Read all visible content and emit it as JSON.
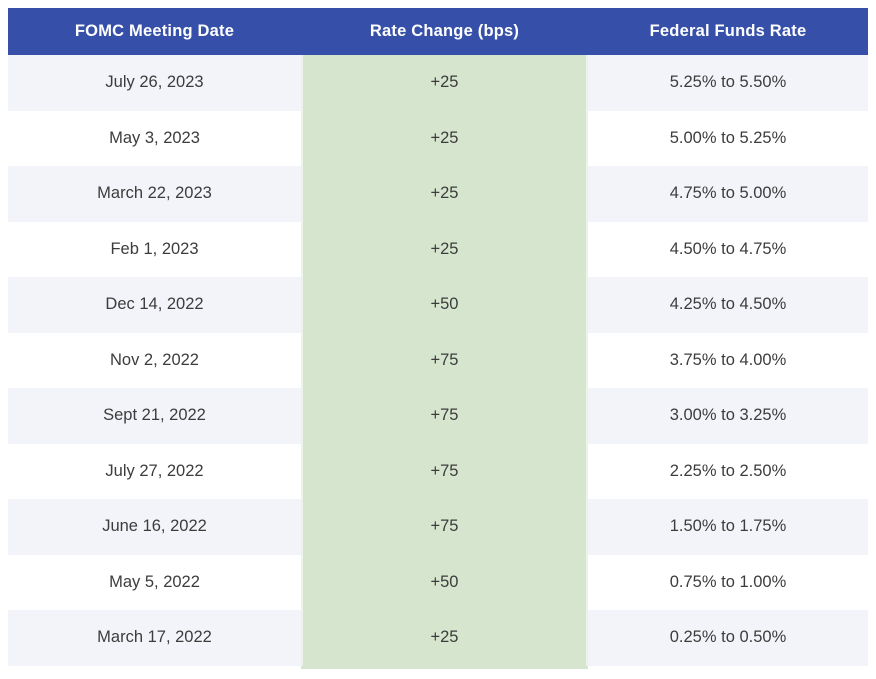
{
  "chart_data": {
    "type": "table",
    "columns": [
      "FOMC Meeting Date",
      "Rate Change (bps)",
      "Federal Funds Rate"
    ],
    "rows": [
      [
        "July 26, 2023",
        "+25",
        "5.25% to 5.50%"
      ],
      [
        "May 3, 2023",
        "+25",
        "5.00% to 5.25%"
      ],
      [
        "March 22, 2023",
        "+25",
        "4.75% to 5.00%"
      ],
      [
        "Feb 1, 2023",
        "+25",
        "4.50% to 4.75%"
      ],
      [
        "Dec 14, 2022",
        "+50",
        "4.25% to 4.50%"
      ],
      [
        "Nov 2, 2022",
        "+75",
        "3.75% to 4.00%"
      ],
      [
        "Sept 21, 2022",
        "+75",
        "3.00% to 3.25%"
      ],
      [
        "July 27, 2022",
        "+75",
        "2.25% to 2.50%"
      ],
      [
        "June 16, 2022",
        "+75",
        "1.50% to 1.75%"
      ],
      [
        "May 5, 2022",
        "+50",
        "0.75% to 1.00%"
      ],
      [
        "March 17, 2022",
        "+25",
        "0.25% to 0.50%"
      ]
    ],
    "layout_hints": {
      "header_style": "solid blue bar, white bold centered text",
      "row_striping": "odd rows lavender, even rows white",
      "middle_column": "continuous light green band",
      "alignment": "all cells centered"
    }
  },
  "colors": {
    "header_bg": "#3650a9",
    "header_text": "#ffffff",
    "row_alt_bg": "#f3f4f9",
    "row_bg": "#ffffff",
    "change_col_bg": "#d6e6ce",
    "body_text": "#3c3c3c"
  }
}
